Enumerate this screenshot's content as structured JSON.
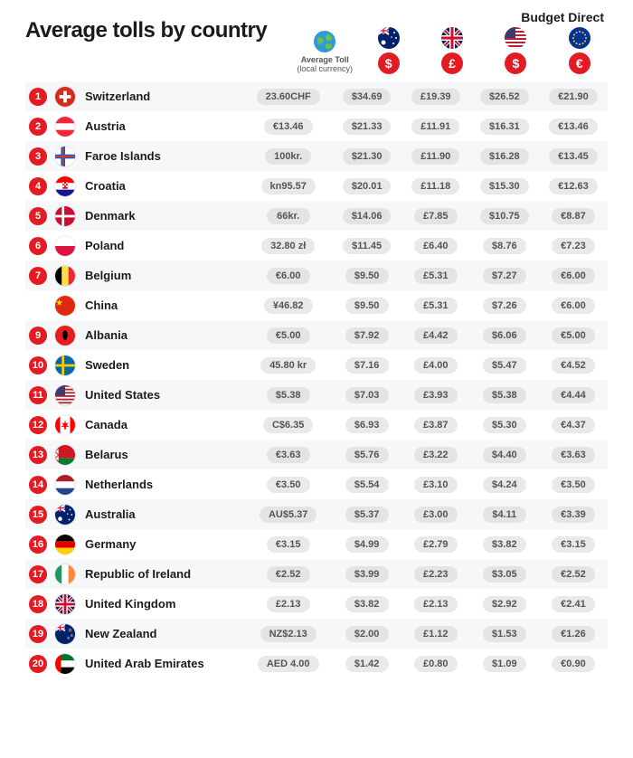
{
  "brand": "Budget Direct",
  "title": "Average tolls by country",
  "columns": {
    "local": {
      "label_line1": "Average Toll",
      "label_line2": "(local currency)"
    },
    "currencies": [
      {
        "symbol": "$",
        "flag": "au"
      },
      {
        "symbol": "£",
        "flag": "uk"
      },
      {
        "symbol": "$",
        "flag": "us"
      },
      {
        "symbol": "€",
        "flag": "eu"
      }
    ]
  },
  "colors": {
    "accent_red": "#e31b23",
    "row_odd_bg": "#f6f7f8",
    "row_even_bg": "#ffffff",
    "pill_bg": "#e8e9ea",
    "text_dark": "#1b1b1b",
    "text_mid": "#555555"
  },
  "rows": [
    {
      "rank": "1",
      "flag": "ch",
      "country": "Switzerland",
      "local": "23.60CHF",
      "aud": "$34.69",
      "gbp": "£19.39",
      "usd": "$26.52",
      "eur": "€21.90"
    },
    {
      "rank": "2",
      "flag": "at",
      "country": "Austria",
      "local": "€13.46",
      "aud": "$21.33",
      "gbp": "£11.91",
      "usd": "$16.31",
      "eur": "€13.46"
    },
    {
      "rank": "3",
      "flag": "fo",
      "country": "Faroe Islands",
      "local": "100kr.",
      "aud": "$21.30",
      "gbp": "£11.90",
      "usd": "$16.28",
      "eur": "€13.45"
    },
    {
      "rank": "4",
      "flag": "hr",
      "country": "Croatia",
      "local": "kn95.57",
      "aud": "$20.01",
      "gbp": "£11.18",
      "usd": "$15.30",
      "eur": "€12.63"
    },
    {
      "rank": "5",
      "flag": "dk",
      "country": "Denmark",
      "local": "66kr.",
      "aud": "$14.06",
      "gbp": "£7.85",
      "usd": "$10.75",
      "eur": "€8.87"
    },
    {
      "rank": "6",
      "flag": "pl",
      "country": "Poland",
      "local": "32.80 zł",
      "aud": "$11.45",
      "gbp": "£6.40",
      "usd": "$8.76",
      "eur": "€7.23"
    },
    {
      "rank": "7",
      "flag": "be",
      "country": "Belgium",
      "local": "€6.00",
      "aud": "$9.50",
      "gbp": "£5.31",
      "usd": "$7.27",
      "eur": "€6.00"
    },
    {
      "rank": "",
      "flag": "cn",
      "country": "China",
      "local": "¥46.82",
      "aud": "$9.50",
      "gbp": "£5.31",
      "usd": "$7.26",
      "eur": "€6.00"
    },
    {
      "rank": "9",
      "flag": "al",
      "country": "Albania",
      "local": "€5.00",
      "aud": "$7.92",
      "gbp": "£4.42",
      "usd": "$6.06",
      "eur": "€5.00"
    },
    {
      "rank": "10",
      "flag": "se",
      "country": "Sweden",
      "local": "45.80 kr",
      "aud": "$7.16",
      "gbp": "£4.00",
      "usd": "$5.47",
      "eur": "€4.52"
    },
    {
      "rank": "11",
      "flag": "us",
      "country": "United States",
      "local": "$5.38",
      "aud": "$7.03",
      "gbp": "£3.93",
      "usd": "$5.38",
      "eur": "€4.44"
    },
    {
      "rank": "12",
      "flag": "ca",
      "country": "Canada",
      "local": "C$6.35",
      "aud": "$6.93",
      "gbp": "£3.87",
      "usd": "$5.30",
      "eur": "€4.37"
    },
    {
      "rank": "13",
      "flag": "by",
      "country": "Belarus",
      "local": "€3.63",
      "aud": "$5.76",
      "gbp": "£3.22",
      "usd": "$4.40",
      "eur": "€3.63"
    },
    {
      "rank": "14",
      "flag": "nl",
      "country": "Netherlands",
      "local": "€3.50",
      "aud": "$5.54",
      "gbp": "£3.10",
      "usd": "$4.24",
      "eur": "€3.50"
    },
    {
      "rank": "15",
      "flag": "au",
      "country": "Australia",
      "local": "AU$5.37",
      "aud": "$5.37",
      "gbp": "£3.00",
      "usd": "$4.11",
      "eur": "€3.39"
    },
    {
      "rank": "16",
      "flag": "de",
      "country": "Germany",
      "local": "€3.15",
      "aud": "$4.99",
      "gbp": "£2.79",
      "usd": "$3.82",
      "eur": "€3.15"
    },
    {
      "rank": "17",
      "flag": "ie",
      "country": "Republic of Ireland",
      "local": "€2.52",
      "aud": "$3.99",
      "gbp": "£2.23",
      "usd": "$3.05",
      "eur": "€2.52"
    },
    {
      "rank": "18",
      "flag": "uk",
      "country": "United Kingdom",
      "local": "£2.13",
      "aud": "$3.82",
      "gbp": "£2.13",
      "usd": "$2.92",
      "eur": "€2.41"
    },
    {
      "rank": "19",
      "flag": "nz",
      "country": "New Zealand",
      "local": "NZ$2.13",
      "aud": "$2.00",
      "gbp": "£1.12",
      "usd": "$1.53",
      "eur": "€1.26"
    },
    {
      "rank": "20",
      "flag": "ae",
      "country": "United Arab Emirates",
      "local": "AED 4.00",
      "aud": "$1.42",
      "gbp": "£0.80",
      "usd": "$1.09",
      "eur": "€0.90"
    }
  ]
}
